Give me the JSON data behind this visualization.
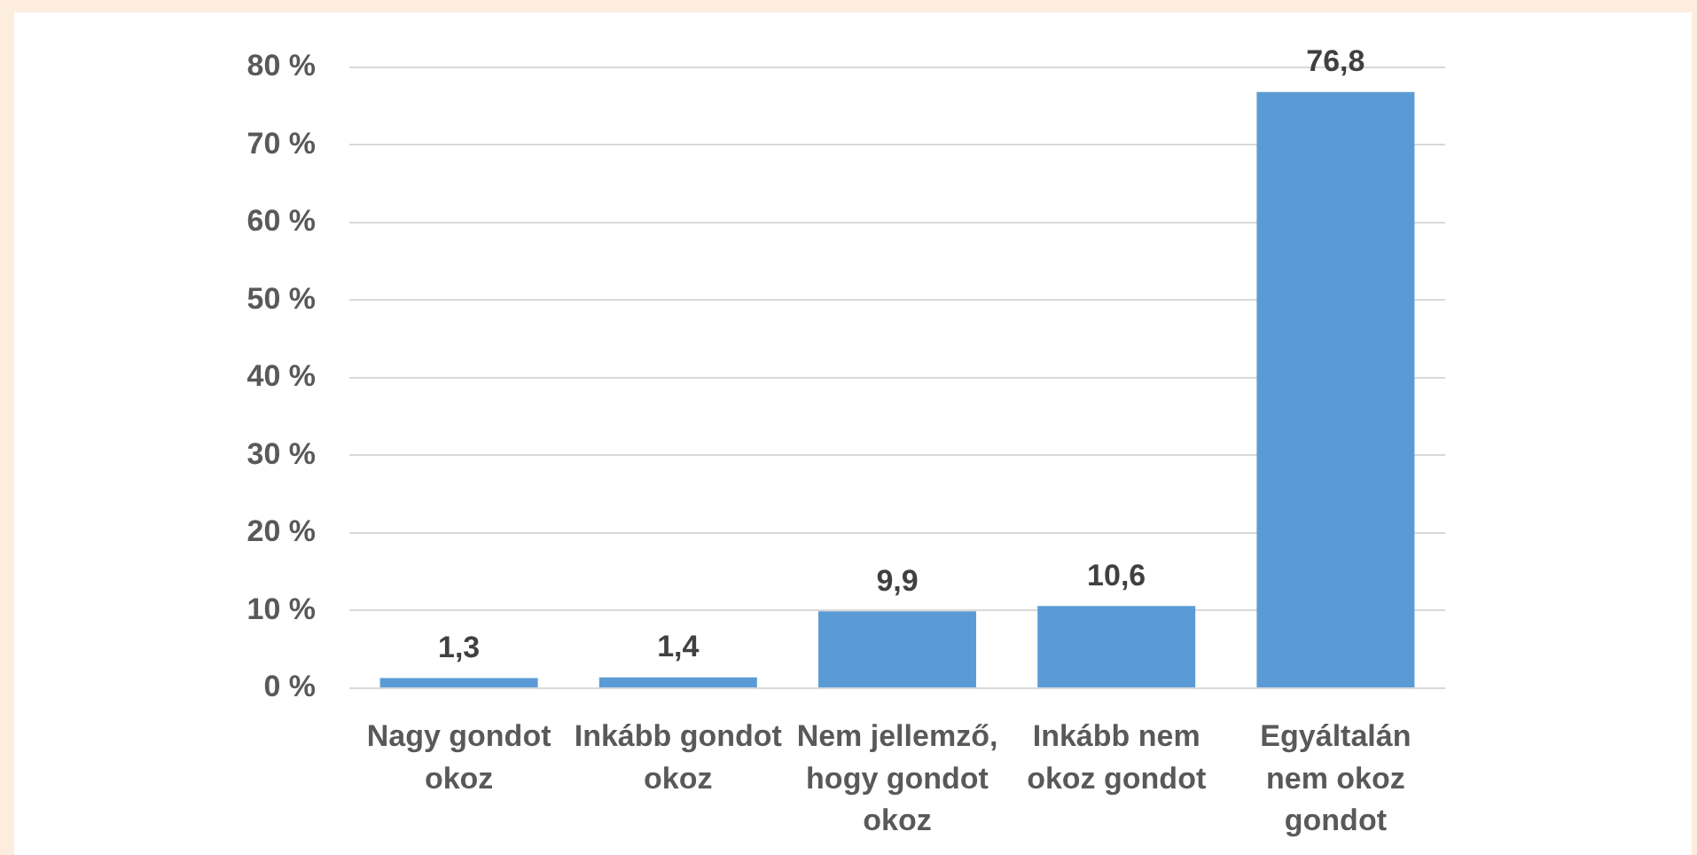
{
  "chart_data": {
    "type": "bar",
    "categories": [
      "Nagy gondot okoz",
      "Inkább gondot okoz",
      "Nem jellemző, hogy gondot okoz",
      "Inkább nem okoz gondot",
      "Egyáltalán nem okoz gondot"
    ],
    "values": [
      1.3,
      1.4,
      9.9,
      10.6,
      76.8
    ],
    "color": "#5b9bd5",
    "value_labels": [
      "1,3",
      "1,4",
      "9,9",
      "10,6",
      "76,8"
    ],
    "ylim": [
      0,
      80
    ],
    "yticks": [
      {
        "value": 0,
        "label": "0 %"
      },
      {
        "value": 10,
        "label": "10 %"
      },
      {
        "value": 20,
        "label": "20 %"
      },
      {
        "value": 30,
        "label": "30 %"
      },
      {
        "value": 40,
        "label": "40 %"
      },
      {
        "value": 50,
        "label": "50 %"
      },
      {
        "value": 60,
        "label": "60 %"
      },
      {
        "value": 70,
        "label": "70 %"
      },
      {
        "value": 80,
        "label": "80 %"
      }
    ],
    "grid": "y"
  }
}
